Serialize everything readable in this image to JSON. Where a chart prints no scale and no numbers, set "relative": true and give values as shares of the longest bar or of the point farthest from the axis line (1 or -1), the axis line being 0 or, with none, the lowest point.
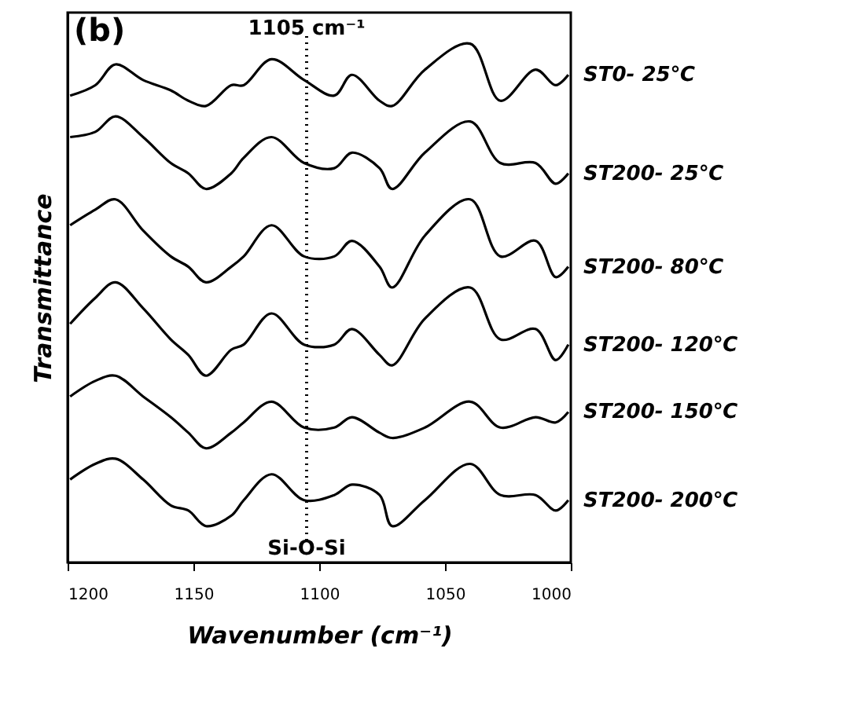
{
  "chart_data": {
    "type": "line",
    "relative": true,
    "xlabel": "Wavenumber (cm⁻¹)",
    "ylabel": "Transmittance",
    "x": [
      1199,
      1189,
      1181,
      1170,
      1159,
      1152,
      1145,
      1135,
      1130,
      1119,
      1106,
      1094,
      1087,
      1076,
      1071,
      1058,
      1040,
      1028,
      1014,
      1006,
      1001
    ],
    "xlim": [
      1200,
      1000
    ],
    "xticks": [
      1200,
      1150,
      1100,
      1050,
      1000
    ],
    "line_style": "solid",
    "marker": "none",
    "series": [
      {
        "name": "ST0- 25℃",
        "color": "#000000",
        "values": [
          0.9,
          0.92,
          0.96,
          0.93,
          0.91,
          0.89,
          0.88,
          0.92,
          0.92,
          0.97,
          0.93,
          0.9,
          0.94,
          0.89,
          0.88,
          0.95,
          1.0,
          0.89,
          0.95,
          0.92,
          0.94
        ]
      },
      {
        "name": "ST200- 25℃",
        "color": "#000000",
        "values": [
          0.82,
          0.83,
          0.86,
          0.82,
          0.77,
          0.75,
          0.72,
          0.75,
          0.78,
          0.82,
          0.77,
          0.76,
          0.79,
          0.76,
          0.72,
          0.79,
          0.85,
          0.77,
          0.77,
          0.73,
          0.75
        ]
      },
      {
        "name": "ST200- 80℃",
        "color": "#000000",
        "values": [
          0.65,
          0.68,
          0.7,
          0.64,
          0.59,
          0.57,
          0.54,
          0.57,
          0.59,
          0.65,
          0.59,
          0.59,
          0.62,
          0.57,
          0.53,
          0.63,
          0.7,
          0.59,
          0.62,
          0.55,
          0.57
        ]
      },
      {
        "name": "ST200- 120℃",
        "color": "#000000",
        "values": [
          0.46,
          0.51,
          0.54,
          0.49,
          0.43,
          0.4,
          0.36,
          0.41,
          0.42,
          0.48,
          0.42,
          0.42,
          0.45,
          0.4,
          0.38,
          0.47,
          0.53,
          0.43,
          0.45,
          0.39,
          0.42
        ]
      },
      {
        "name": "ST200- 150℃",
        "color": "#000000",
        "values": [
          0.32,
          0.35,
          0.36,
          0.32,
          0.28,
          0.25,
          0.22,
          0.25,
          0.27,
          0.31,
          0.26,
          0.26,
          0.28,
          0.25,
          0.24,
          0.26,
          0.31,
          0.26,
          0.28,
          0.27,
          0.29
        ]
      },
      {
        "name": "ST200- 200℃",
        "color": "#000000",
        "values": [
          0.16,
          0.19,
          0.2,
          0.16,
          0.11,
          0.1,
          0.07,
          0.09,
          0.12,
          0.17,
          0.12,
          0.13,
          0.15,
          0.13,
          0.07,
          0.12,
          0.19,
          0.13,
          0.13,
          0.1,
          0.12
        ]
      }
    ],
    "ref_lines": [
      {
        "axis": "x",
        "value": 1105,
        "label": "1105 cm⁻¹",
        "color": "#000000",
        "line_style": "dotted"
      }
    ],
    "annotations": [
      "(b)",
      "Si-O-Si"
    ]
  }
}
